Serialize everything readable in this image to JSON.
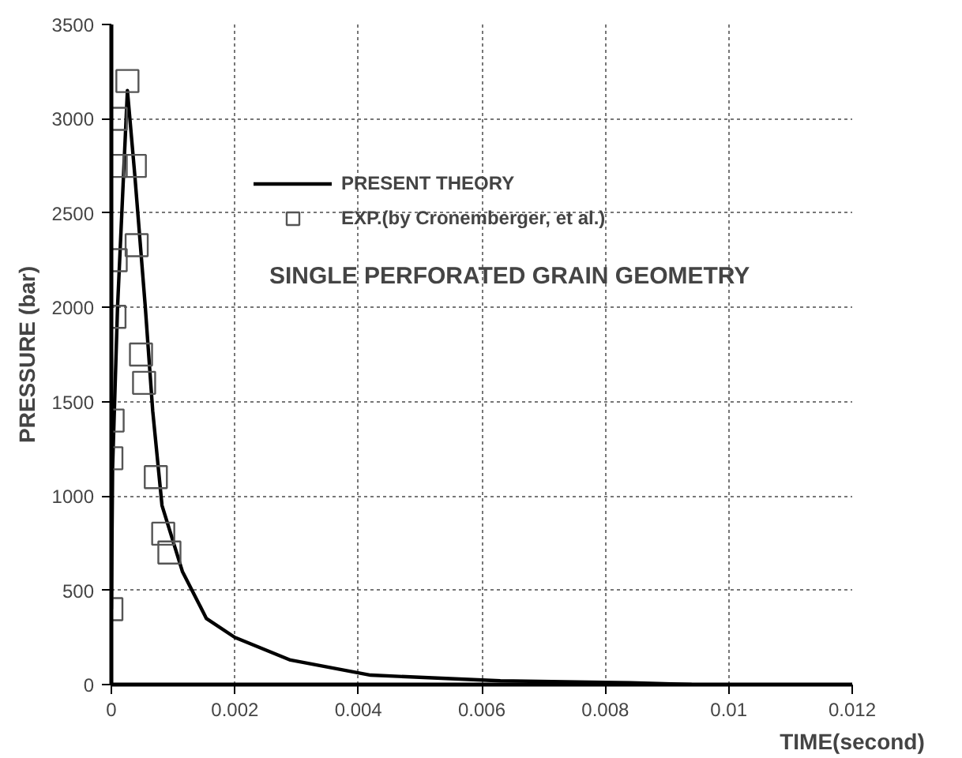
{
  "chart_data": {
    "type": "line",
    "xlabel": "TIME(second)",
    "ylabel": "PRESSURE (bar)",
    "annotations": [
      "SINGLE PERFORATED GRAIN GEOMETRY"
    ],
    "series": [
      {
        "name": "PRESENT THEORY",
        "color": "#000000",
        "marker": "none",
        "x": [
          0,
          2e-05,
          0.0001,
          0.00019,
          0.00026,
          0.00038,
          0.00055,
          0.00067,
          0.00082,
          0.00115,
          0.00154,
          0.002,
          0.0029,
          0.0042,
          0.0063,
          0.0084,
          0.0094
        ],
        "values": [
          400,
          1150,
          2000,
          2650,
          3150,
          2700,
          2000,
          1450,
          950,
          600,
          350,
          250,
          130,
          50,
          20,
          10,
          0
        ]
      },
      {
        "name": "EXP.(by Cronemberger, et al.)",
        "type": "scatter",
        "color": "#555555",
        "marker": "square",
        "x": [
          0,
          0,
          2e-05,
          5e-05,
          7e-05,
          7e-05,
          7e-05,
          0.00026,
          0.00038,
          0.00041,
          0.00048,
          0.00053,
          0.00072,
          0.00084,
          0.00094
        ],
        "values": [
          400,
          1200,
          1400,
          1950,
          2250,
          2750,
          3000,
          3200,
          2750,
          2330,
          1750,
          1600,
          1100,
          800,
          700
        ]
      }
    ],
    "line_style": "solid",
    "xlim": [
      0,
      0.012
    ],
    "ylim": [
      0,
      3500
    ],
    "xticks": [
      0,
      0.002,
      0.004,
      0.006,
      0.008,
      0.01,
      0.012
    ],
    "yticks": [
      0,
      500,
      1000,
      1500,
      2000,
      2500,
      3000,
      3500
    ],
    "grid": true,
    "legend": "top"
  }
}
